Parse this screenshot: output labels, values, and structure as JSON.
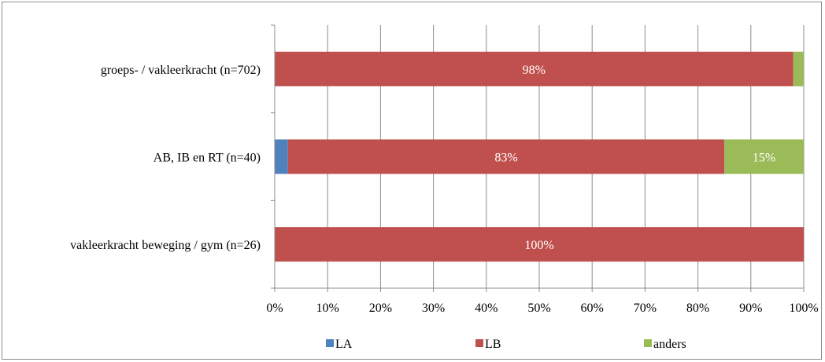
{
  "chart_data": {
    "type": "bar",
    "orientation": "horizontal",
    "stacked": true,
    "percent": true,
    "categories": [
      "groeps- / vakleerkracht (n=702)",
      "AB, IB en RT (n=40)",
      "vakleerkracht beweging / gym (n=26)"
    ],
    "series": [
      {
        "name": "LA",
        "color": "#4f81bd",
        "values": [
          0,
          2.5,
          0
        ],
        "labels": [
          "",
          "",
          ""
        ]
      },
      {
        "name": "LB",
        "color": "#c0504d",
        "values": [
          98,
          82.5,
          100
        ],
        "labels": [
          "98%",
          "83%",
          "100%"
        ]
      },
      {
        "name": "anders",
        "color": "#9bbb59",
        "values": [
          2,
          15,
          0
        ],
        "labels": [
          "",
          "15%",
          ""
        ]
      }
    ],
    "xlim": [
      0,
      100
    ],
    "xticks": [
      "0%",
      "10%",
      "20%",
      "30%",
      "40%",
      "50%",
      "60%",
      "70%",
      "80%",
      "90%",
      "100%"
    ],
    "grid": true,
    "legend_position": "bottom"
  }
}
